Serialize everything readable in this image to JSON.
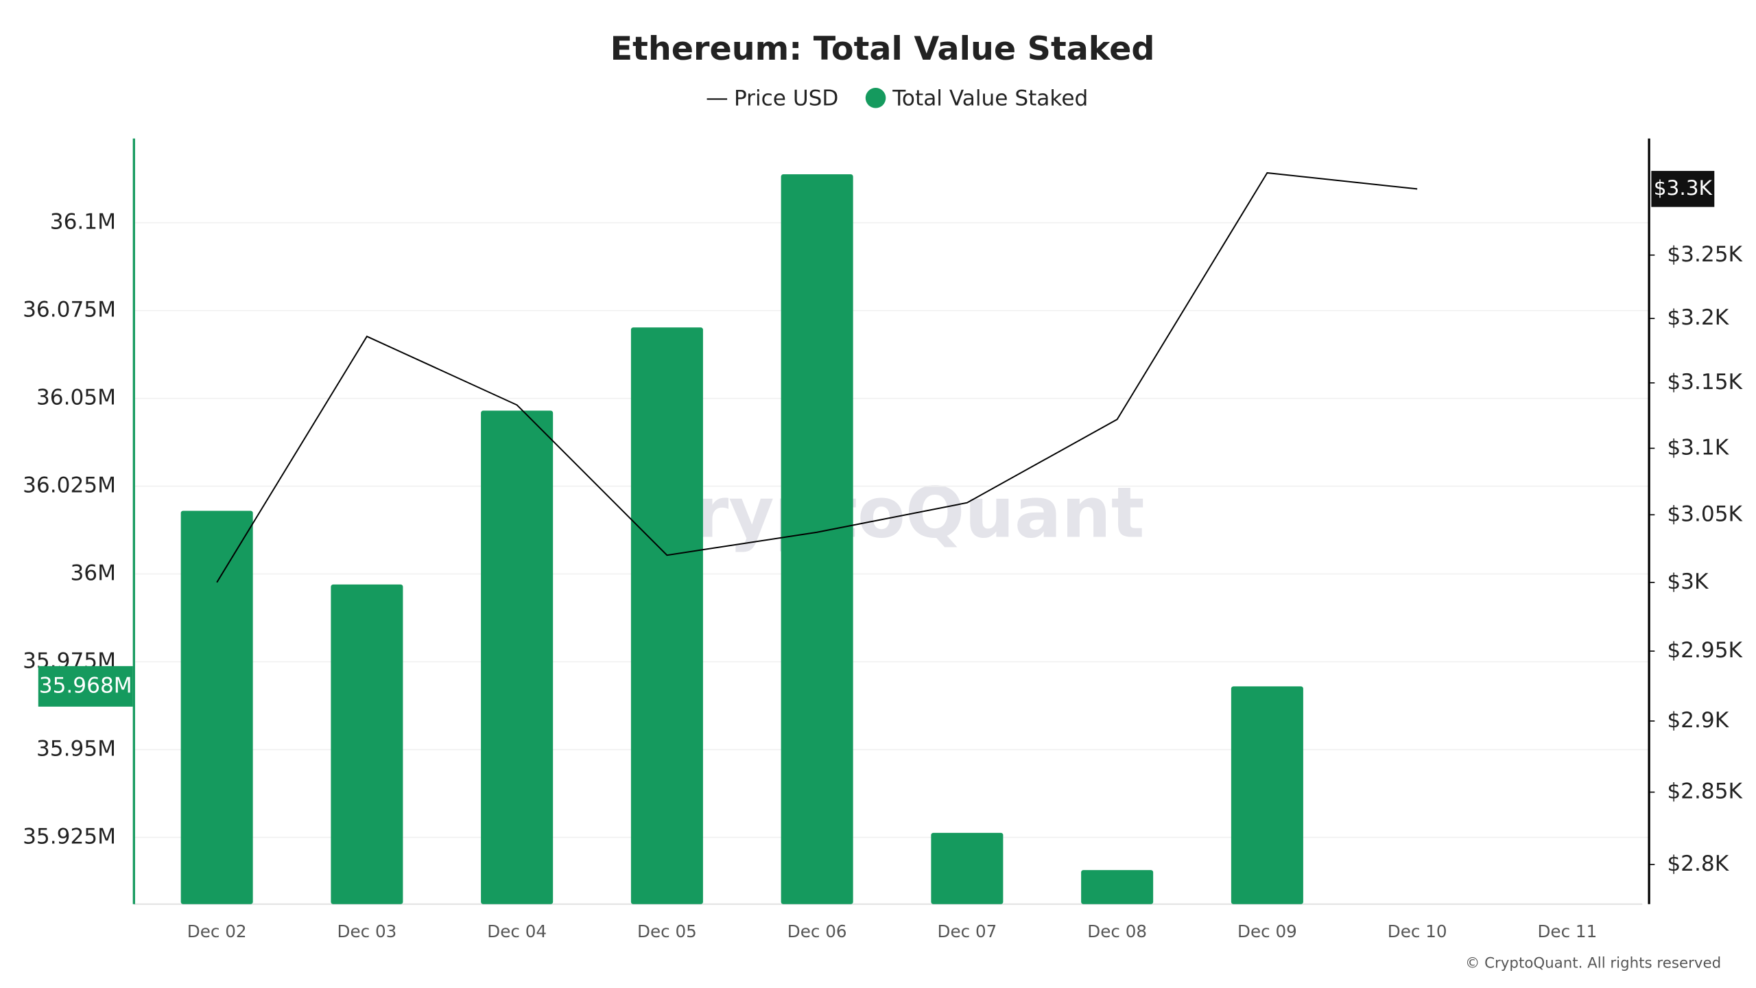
{
  "chart_data": {
    "type": "bar",
    "title": "Ethereum: Total Value Staked",
    "categories": [
      "Dec 02",
      "Dec 03",
      "Dec 04",
      "Dec 05",
      "Dec 06",
      "Dec 07",
      "Dec 08",
      "Dec 09",
      "Dec 10",
      "Dec 11"
    ],
    "series": [
      {
        "name": "Price USD",
        "type": "line",
        "axis": "y2",
        "color": "#000000",
        "values": [
          3.0,
          3.186,
          3.133,
          3.02,
          3.037,
          3.059,
          3.122,
          3.316,
          3.303,
          null
        ],
        "last_label": "$3.3K"
      },
      {
        "name": "Total Value Staked",
        "type": "bar",
        "color": "#159a5e",
        "values": [
          36.018,
          35.997,
          36.0465,
          36.0702,
          36.1138,
          35.9263,
          35.9157,
          35.968,
          null,
          null
        ],
        "last_label": "35.968M"
      }
    ],
    "ylim": [
      35.906,
      36.124
    ],
    "yticks": [
      {
        "value": 35.925,
        "label": "35.925M"
      },
      {
        "value": 35.95,
        "label": "35.95M"
      },
      {
        "value": 35.975,
        "label": "35.975M"
      },
      {
        "value": 36,
        "label": "36M"
      },
      {
        "value": 36.025,
        "label": "36.025M"
      },
      {
        "value": 36.05,
        "label": "36.05M"
      },
      {
        "value": 36.075,
        "label": "36.075M"
      },
      {
        "value": 36.1,
        "label": "36.1M"
      }
    ],
    "y2lim": [
      2.773,
      3.344
    ],
    "y2log": true,
    "y2ticks": [
      {
        "value": 2.8,
        "label": "$2.8K"
      },
      {
        "value": 2.85,
        "label": "$2.85K"
      },
      {
        "value": 2.9,
        "label": "$2.9K"
      },
      {
        "value": 2.95,
        "label": "$2.95K"
      },
      {
        "value": 3,
        "label": "$3K"
      },
      {
        "value": 3.05,
        "label": "$3.05K"
      },
      {
        "value": 3.1,
        "label": "$3.1K"
      },
      {
        "value": 3.15,
        "label": "$3.15K"
      },
      {
        "value": 3.2,
        "label": "$3.2K"
      },
      {
        "value": 3.25,
        "label": "$3.25K"
      }
    ],
    "grid": true,
    "watermark": "CryptoQuant",
    "copyright": "© CryptoQuant. All rights reserved"
  }
}
